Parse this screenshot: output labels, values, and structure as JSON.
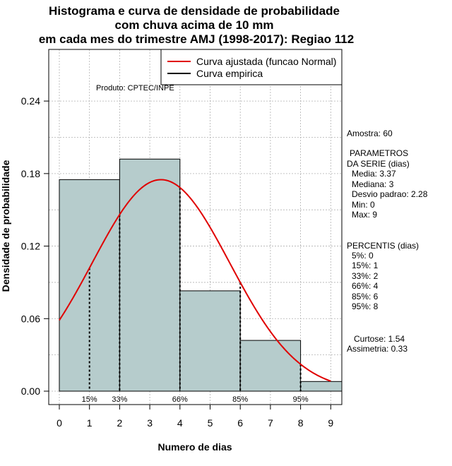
{
  "chart_data": {
    "type": "histogram",
    "title_lines": [
      "Histograma e curva de densidade de probabilidade",
      "com chuva acima de 10 mm",
      "em cada mes do trimestre AMJ (1998-2017): Regiao 112"
    ],
    "xlabel": "Numero de dias",
    "ylabel": "Densidade de probabilidade",
    "xlim": [
      0,
      9
    ],
    "ylim": [
      0,
      0.24
    ],
    "x_ticks": [
      "0",
      "1",
      "2",
      "3",
      "4",
      "5",
      "6",
      "7",
      "8",
      "9"
    ],
    "y_ticks": [
      "0.00",
      "0.06",
      "0.12",
      "0.18",
      "0.24"
    ],
    "bins": [
      {
        "x0": 0,
        "x1": 2,
        "density": 0.175
      },
      {
        "x0": 2,
        "x1": 4,
        "density": 0.192
      },
      {
        "x0": 4,
        "x1": 6,
        "density": 0.083
      },
      {
        "x0": 6,
        "x1": 8,
        "density": 0.042
      },
      {
        "x0": 8,
        "x1": 9.5,
        "density": 0.008
      }
    ],
    "normal_fit": {
      "mean": 3.37,
      "sd": 2.28,
      "x_range": [
        0,
        9
      ]
    },
    "percentile_markers": [
      {
        "x": 1,
        "label": "15%"
      },
      {
        "x": 2,
        "label": "33%"
      },
      {
        "x": 4,
        "label": "66%"
      },
      {
        "x": 6,
        "label": "85%"
      },
      {
        "x": 8,
        "label": "95%"
      }
    ],
    "legend": [
      {
        "label": "Curva ajustada (funcao Normal)",
        "color": "#e00000"
      },
      {
        "label": "Curva empirica",
        "color": "#000000"
      }
    ],
    "credit": "Produto: CPTEC/INPE",
    "colors": {
      "bar_fill": "#b6cccc",
      "curve": "#e00000",
      "grid": "#b0b0b0"
    }
  },
  "stats_panel": {
    "amostra": "Amostra: 60",
    "params_title_1": "PARAMETROS",
    "params_title_2": "DA SERIE (dias)",
    "media": "Media: 3.37",
    "mediana": "Mediana: 3",
    "desvio": "Desvio padrao: 2.28",
    "min": "Min: 0",
    "max": "Max: 9",
    "percentis_title": "PERCENTIS (dias)",
    "p5": "5%: 0",
    "p15": "15%: 1",
    "p33": "33%: 2",
    "p66": "66%: 4",
    "p85": "85%: 6",
    "p95": "95%: 8",
    "curtose": "Curtose: 1.54",
    "assimetria": "Assimetria: 0.33"
  }
}
